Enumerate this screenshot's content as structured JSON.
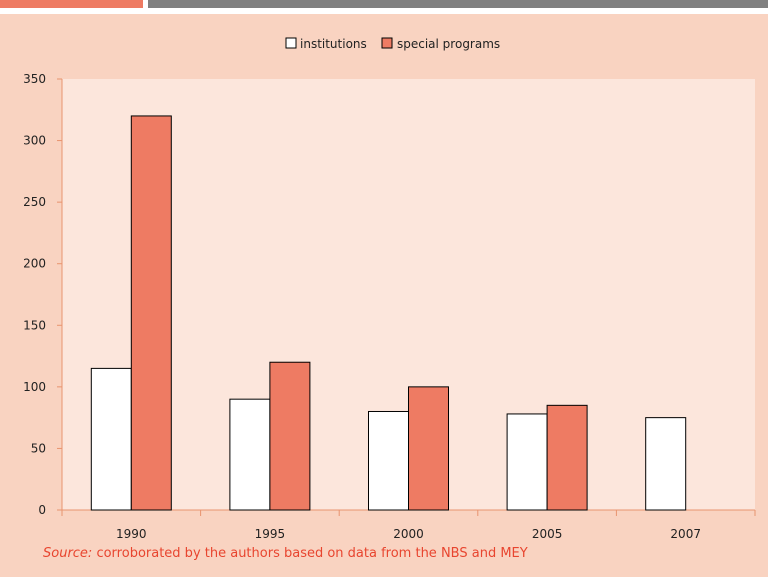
{
  "header": {
    "accent_color": "#ee7b63",
    "bar_color": "#808080"
  },
  "panel": {
    "background": "#f9d3c1",
    "plot_background": "#fce6dc"
  },
  "source": {
    "label": "Source:",
    "text": " corroborated by the authors based on data from the NBS and MEY"
  },
  "chart_data": {
    "type": "bar",
    "categories": [
      "1990",
      "1995",
      "2000",
      "2005",
      "2007"
    ],
    "series": [
      {
        "name": "institutions",
        "values": [
          115,
          90,
          80,
          78,
          75
        ],
        "color": "#ffffff"
      },
      {
        "name": "special programs",
        "values": [
          320,
          120,
          100,
          85,
          null
        ],
        "color": "#ee7b63"
      }
    ],
    "ylim": [
      0,
      350
    ],
    "yticks": [
      "0",
      "50",
      "100",
      "150",
      "200",
      "250",
      "300",
      "350"
    ],
    "grid": false,
    "legend_position": "top-center"
  }
}
